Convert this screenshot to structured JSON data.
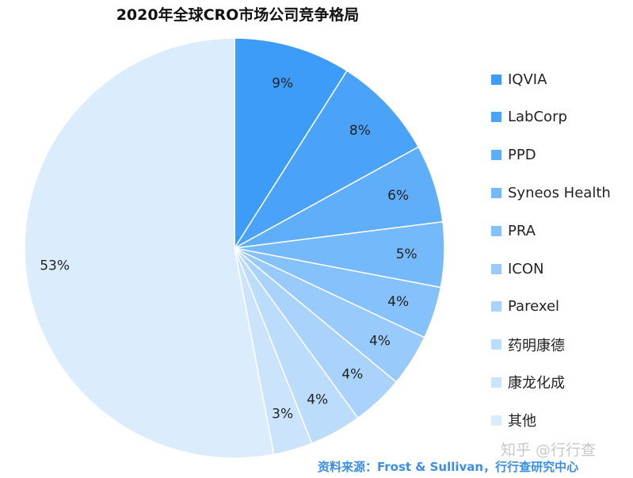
{
  "chart_data": {
    "type": "pie",
    "title": "2020年全球CRO市场公司竞争格局",
    "categories": [
      "IQVIA",
      "LabCorp",
      "PPD",
      "Syneos Health",
      "PRA",
      "ICON",
      "Parexel",
      "药明康德",
      "康龙化成",
      "其他"
    ],
    "values": [
      9,
      8,
      6,
      5,
      4,
      4,
      4,
      4,
      3,
      53
    ],
    "data_labels": [
      "9%",
      "8%",
      "6%",
      "5%",
      "4%",
      "4%",
      "4%",
      "4%",
      "3%",
      "53%"
    ],
    "colors": [
      "#3d9cf8",
      "#4aa3f8",
      "#5eaef9",
      "#74b9fa",
      "#85c1fa",
      "#98cbfb",
      "#a9d3fb",
      "#bcdcfc",
      "#cbe4fc",
      "#dbecfd"
    ],
    "start_angle": "12 o'clock, clockwise",
    "legend_position": "right"
  },
  "source": "资料来源：Frost & Sullivan，行行查研究中心",
  "watermark": "知乎 @行行查"
}
